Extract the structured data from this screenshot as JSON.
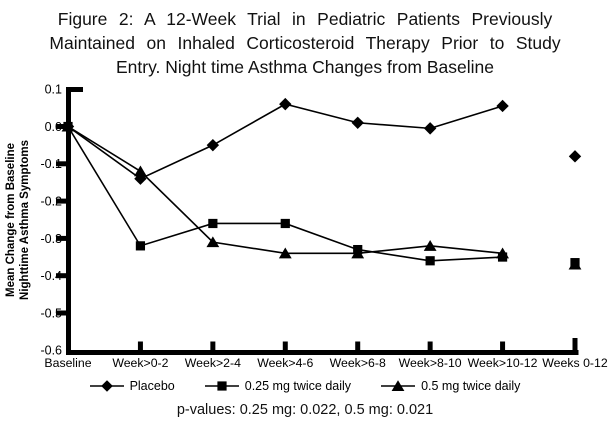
{
  "title": {
    "lines": [
      "Figure 2: A 12-Week Trial in Pediatric Patients Previously",
      "Maintained on Inhaled Corticosteroid Therapy Prior to Study",
      "Entry. Night time Asthma Changes from Baseline"
    ]
  },
  "chart_data": {
    "type": "line",
    "title": "Figure 2: A 12-Week Trial in Pediatric Patients Previously Maintained on Inhaled Corticosteroid Therapy Prior to Study Entry. Night time Asthma Changes from Baseline",
    "ylabel_lines": [
      "Mean Change from Baseline",
      "Nighttime Asthma Symptoms"
    ],
    "xlabel": "",
    "categories": [
      "Baseline",
      "Week>0-2",
      "Week>2-4",
      "Week>4-6",
      "Week>6-8",
      "Week>8-10",
      "Week>10-12",
      "Weeks 0-12"
    ],
    "ytick_labels": [
      "0.1",
      "0.0",
      "-0.1",
      "-0.2",
      "-0.3",
      "-0.4",
      "-0.5",
      "-0.6"
    ],
    "yticks": [
      0.1,
      0.0,
      -0.1,
      -0.2,
      -0.3,
      -0.4,
      -0.5,
      -0.6
    ],
    "ylim": [
      -0.6,
      0.1
    ],
    "grid": false,
    "legend_position": "bottom",
    "last_point_unconnected": true,
    "line_color": "#000000",
    "series": [
      {
        "name": "Placebo",
        "marker": "diamond",
        "values": [
          0.0,
          -0.14,
          -0.05,
          0.06,
          0.01,
          -0.005,
          0.055,
          -0.08
        ]
      },
      {
        "name": "0.25 mg twice daily",
        "marker": "square",
        "values": [
          0.0,
          -0.32,
          -0.26,
          -0.26,
          -0.33,
          -0.36,
          -0.35,
          -0.365
        ]
      },
      {
        "name": "0.5 mg twice daily",
        "marker": "triangle",
        "values": [
          0.0,
          -0.12,
          -0.31,
          -0.34,
          -0.34,
          -0.32,
          -0.34,
          -0.37
        ]
      }
    ]
  },
  "footer": {
    "p_note": "p-values: 0.25 mg: 0.022, 0.5 mg: 0.021"
  }
}
